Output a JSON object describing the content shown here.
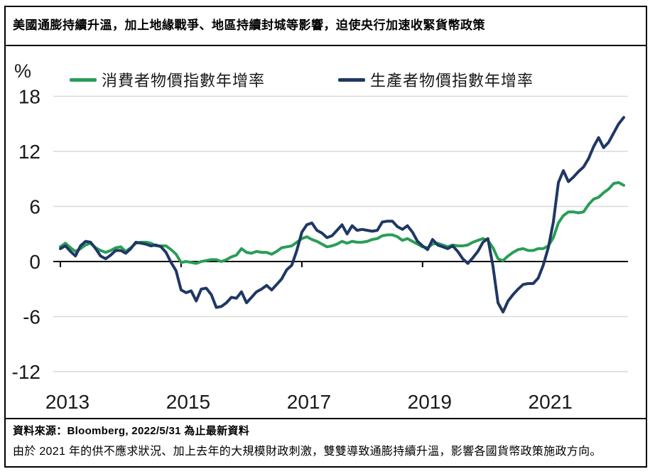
{
  "title": "美國通膨持續升溫，加上地緣戰爭、地區持續封城等影響，迫使央行加速收緊貨幣政策",
  "footer": {
    "source_line": "資料來源：Bloomberg, 2022/5/31 為止最新資料",
    "note_line": "由於 2021 年的供不應求狀況、加上去年的大規模財政刺激，雙雙導致通膨持續升溫，影響各國貨幣政策施政方向。"
  },
  "chart_data": {
    "type": "line",
    "unit_label": "%",
    "x_range": "2013-01 to 2022-05, monthly",
    "x_tick_labels": [
      "2013",
      "2015",
      "2017",
      "2019",
      "2021"
    ],
    "x_tick_month_index": [
      0,
      24,
      48,
      72,
      96
    ],
    "y_ticks": [
      18,
      12,
      6,
      0,
      -6,
      -12
    ],
    "ylim": [
      -12,
      18
    ],
    "grid": "horizontal-light-gray",
    "legend_position": "top",
    "colors": {
      "cpi": "#2a9d57",
      "ppi": "#1f3864",
      "grid": "#d9d9d9",
      "axis": "#000000"
    },
    "series": [
      {
        "name": "消費者物價指數年增率",
        "color_key": "cpi",
        "values": [
          1.6,
          2.0,
          1.5,
          1.1,
          1.4,
          1.8,
          2.0,
          1.5,
          1.2,
          1.0,
          1.2,
          1.5,
          1.6,
          1.1,
          1.5,
          2.0,
          2.1,
          2.1,
          2.0,
          1.7,
          1.7,
          1.7,
          1.3,
          0.8,
          -0.1,
          0.0,
          -0.1,
          -0.2,
          0.0,
          0.1,
          0.2,
          0.2,
          0.0,
          0.2,
          0.5,
          0.7,
          1.4,
          1.0,
          0.9,
          1.1,
          1.0,
          1.0,
          0.8,
          1.1,
          1.5,
          1.6,
          1.7,
          2.1,
          2.5,
          2.7,
          2.4,
          2.2,
          1.9,
          1.6,
          1.7,
          1.9,
          2.2,
          2.0,
          2.2,
          2.1,
          2.1,
          2.2,
          2.4,
          2.5,
          2.8,
          2.9,
          2.9,
          2.7,
          2.3,
          2.5,
          2.2,
          1.9,
          1.6,
          1.5,
          1.9,
          2.0,
          1.8,
          1.6,
          1.8,
          1.7,
          1.7,
          1.8,
          2.1,
          2.3,
          2.5,
          2.3,
          1.5,
          0.3,
          0.1,
          0.6,
          1.0,
          1.3,
          1.4,
          1.2,
          1.2,
          1.4,
          1.4,
          1.7,
          2.6,
          4.2,
          5.0,
          5.4,
          5.4,
          5.3,
          5.4,
          6.2,
          6.8,
          7.0,
          7.5,
          7.9,
          8.5,
          8.6,
          8.3
        ]
      },
      {
        "name": "生產者物價指數年增率",
        "color_key": "ppi",
        "values": [
          1.4,
          1.7,
          1.1,
          0.6,
          1.7,
          2.2,
          2.1,
          1.4,
          0.6,
          0.3,
          0.7,
          1.2,
          1.2,
          0.9,
          1.4,
          2.1,
          2.0,
          1.9,
          1.7,
          1.8,
          1.6,
          1.0,
          -0.1,
          -1.0,
          -3.1,
          -3.4,
          -3.2,
          -4.3,
          -3.0,
          -2.9,
          -3.6,
          -5.0,
          -4.9,
          -4.5,
          -3.9,
          -4.0,
          -3.3,
          -4.5,
          -3.9,
          -3.3,
          -3.0,
          -2.6,
          -3.1,
          -2.5,
          -1.9,
          -0.9,
          -0.4,
          1.2,
          3.2,
          4.0,
          4.2,
          3.4,
          3.1,
          2.6,
          2.8,
          3.4,
          4.0,
          3.0,
          3.9,
          3.4,
          3.5,
          3.4,
          3.3,
          3.4,
          4.3,
          4.4,
          4.4,
          3.8,
          3.5,
          3.9,
          3.2,
          2.2,
          1.7,
          1.3,
          2.4,
          1.8,
          1.6,
          1.4,
          1.7,
          1.1,
          0.3,
          -0.2,
          0.4,
          1.1,
          2.1,
          2.5,
          -0.5,
          -4.5,
          -5.5,
          -4.3,
          -3.6,
          -3.0,
          -2.5,
          -2.4,
          -2.4,
          -1.8,
          -0.4,
          1.5,
          4.3,
          8.6,
          9.9,
          8.7,
          9.2,
          9.8,
          10.3,
          11.2,
          12.5,
          13.5,
          12.4,
          13.0,
          14.0,
          15.0,
          15.7
        ]
      }
    ]
  }
}
